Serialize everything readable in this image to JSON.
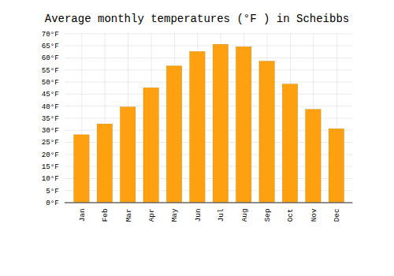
{
  "chart_data": {
    "type": "bar",
    "title": "Average monthly temperatures (°F ) in Scheibbs",
    "categories": [
      "Jan",
      "Feb",
      "Mar",
      "Apr",
      "May",
      "Jun",
      "Jul",
      "Aug",
      "Sep",
      "Oct",
      "Nov",
      "Dec"
    ],
    "values": [
      28,
      32.5,
      39.5,
      47.5,
      56.5,
      62.5,
      65.5,
      64.5,
      58.5,
      49,
      38.5,
      30.5
    ],
    "color": "#FFA010",
    "ylim": [
      0,
      70
    ],
    "yticks": [
      {
        "value": 0,
        "label": "0°F"
      },
      {
        "value": 5,
        "label": "5°F"
      },
      {
        "value": 10,
        "label": "10°F"
      },
      {
        "value": 15,
        "label": "15°F"
      },
      {
        "value": 20,
        "label": "20°F"
      },
      {
        "value": 25,
        "label": "25°F"
      },
      {
        "value": 30,
        "label": "30°F"
      },
      {
        "value": 35,
        "label": "35°F"
      },
      {
        "value": 40,
        "label": "40°F"
      },
      {
        "value": 45,
        "label": "45°F"
      },
      {
        "value": 50,
        "label": "50°F"
      },
      {
        "value": 55,
        "label": "55°F"
      },
      {
        "value": 60,
        "label": "60°F"
      },
      {
        "value": 65,
        "label": "65°F"
      },
      {
        "value": 70,
        "label": "70°F"
      }
    ],
    "grid": true
  }
}
